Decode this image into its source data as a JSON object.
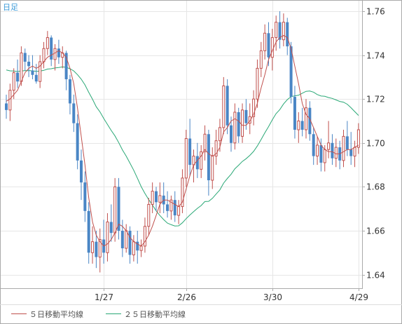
{
  "period_label": "日足",
  "chart_data": {
    "type": "candlestick",
    "ylim": [
      1.635,
      1.765
    ],
    "y_ticks": [
      "1.76",
      "1.74",
      "1.72",
      "1.70",
      "1.68",
      "1.66",
      "1.64"
    ],
    "x_ticks": [
      {
        "label": "1/27",
        "index": 26
      },
      {
        "label": "2/26",
        "index": 48
      },
      {
        "label": "3/30",
        "index": 71
      },
      {
        "label": "4/29",
        "index": 94
      }
    ],
    "legend": [
      {
        "label": "５日移動平均線",
        "color": "#c0504d"
      },
      {
        "label": "２５日移動平均線",
        "color": "#2aa876"
      }
    ],
    "colors": {
      "up": "#c0504d",
      "down": "#4a86c5",
      "ma5": "#c0504d",
      "ma25": "#2aa876",
      "grid": "#e6e6e6",
      "frame": "#aaaaaa"
    },
    "ohlc": [
      [
        1.718,
        1.722,
        1.711,
        1.715
      ],
      [
        1.715,
        1.727,
        1.71,
        1.724
      ],
      [
        1.724,
        1.734,
        1.72,
        1.732
      ],
      [
        1.732,
        1.738,
        1.725,
        1.728
      ],
      [
        1.728,
        1.744,
        1.726,
        1.741
      ],
      [
        1.741,
        1.743,
        1.733,
        1.737
      ],
      [
        1.737,
        1.74,
        1.73,
        1.735
      ],
      [
        1.733,
        1.74,
        1.729,
        1.731
      ],
      [
        1.731,
        1.736,
        1.727,
        1.728
      ],
      [
        1.728,
        1.74,
        1.725,
        1.737
      ],
      [
        1.737,
        1.746,
        1.734,
        1.743
      ],
      [
        1.743,
        1.751,
        1.74,
        1.748
      ],
      [
        1.748,
        1.749,
        1.735,
        1.738
      ],
      [
        1.738,
        1.745,
        1.733,
        1.743
      ],
      [
        1.743,
        1.747,
        1.736,
        1.739
      ],
      [
        1.739,
        1.744,
        1.734,
        1.741
      ],
      [
        1.741,
        1.742,
        1.724,
        1.729
      ],
      [
        1.729,
        1.731,
        1.713,
        1.718
      ],
      [
        1.718,
        1.722,
        1.705,
        1.709
      ],
      [
        1.709,
        1.713,
        1.688,
        1.692
      ],
      [
        1.692,
        1.697,
        1.674,
        1.682
      ],
      [
        1.682,
        1.687,
        1.664,
        1.669
      ],
      [
        1.669,
        1.673,
        1.645,
        1.65
      ],
      [
        1.65,
        1.662,
        1.645,
        1.655
      ],
      [
        1.655,
        1.66,
        1.643,
        1.648
      ],
      [
        1.648,
        1.661,
        1.641,
        1.656
      ],
      [
        1.656,
        1.665,
        1.645,
        1.65
      ],
      [
        1.65,
        1.668,
        1.646,
        1.664
      ],
      [
        1.664,
        1.672,
        1.655,
        1.659
      ],
      [
        1.659,
        1.684,
        1.655,
        1.68
      ],
      [
        1.68,
        1.684,
        1.656,
        1.66
      ],
      [
        1.66,
        1.665,
        1.648,
        1.652
      ],
      [
        1.652,
        1.663,
        1.65,
        1.66
      ],
      [
        1.66,
        1.662,
        1.645,
        1.649
      ],
      [
        1.649,
        1.658,
        1.646,
        1.655
      ],
      [
        1.655,
        1.66,
        1.645,
        1.651
      ],
      [
        1.651,
        1.656,
        1.648,
        1.653
      ],
      [
        1.653,
        1.666,
        1.65,
        1.662
      ],
      [
        1.662,
        1.675,
        1.658,
        1.672
      ],
      [
        1.672,
        1.682,
        1.668,
        1.678
      ],
      [
        1.678,
        1.68,
        1.669,
        1.673
      ],
      [
        1.673,
        1.682,
        1.668,
        1.676
      ],
      [
        1.676,
        1.682,
        1.668,
        1.672
      ],
      [
        1.672,
        1.678,
        1.666,
        1.669
      ],
      [
        1.669,
        1.676,
        1.665,
        1.674
      ],
      [
        1.674,
        1.678,
        1.664,
        1.667
      ],
      [
        1.667,
        1.674,
        1.663,
        1.671
      ],
      [
        1.671,
        1.688,
        1.668,
        1.684
      ],
      [
        1.684,
        1.706,
        1.68,
        1.702
      ],
      [
        1.702,
        1.711,
        1.685,
        1.69
      ],
      [
        1.69,
        1.697,
        1.682,
        1.694
      ],
      [
        1.694,
        1.7,
        1.684,
        1.688
      ],
      [
        1.688,
        1.699,
        1.684,
        1.696
      ],
      [
        1.696,
        1.708,
        1.692,
        1.704
      ],
      [
        1.704,
        1.706,
        1.676,
        1.683
      ],
      [
        1.683,
        1.698,
        1.679,
        1.694
      ],
      [
        1.694,
        1.706,
        1.69,
        1.701
      ],
      [
        1.701,
        1.711,
        1.696,
        1.707
      ],
      [
        1.707,
        1.73,
        1.704,
        1.726
      ],
      [
        1.726,
        1.729,
        1.704,
        1.708
      ],
      [
        1.708,
        1.712,
        1.696,
        1.7
      ],
      [
        1.7,
        1.718,
        1.697,
        1.714
      ],
      [
        1.714,
        1.716,
        1.7,
        1.703
      ],
      [
        1.703,
        1.718,
        1.7,
        1.715
      ],
      [
        1.715,
        1.72,
        1.706,
        1.709
      ],
      [
        1.709,
        1.718,
        1.704,
        1.712
      ],
      [
        1.712,
        1.724,
        1.708,
        1.72
      ],
      [
        1.72,
        1.738,
        1.716,
        1.734
      ],
      [
        1.734,
        1.746,
        1.73,
        1.742
      ],
      [
        1.742,
        1.754,
        1.738,
        1.75
      ],
      [
        1.75,
        1.755,
        1.735,
        1.739
      ],
      [
        1.739,
        1.752,
        1.733,
        1.748
      ],
      [
        1.748,
        1.758,
        1.742,
        1.755
      ],
      [
        1.755,
        1.76,
        1.743,
        1.747
      ],
      [
        1.747,
        1.759,
        1.744,
        1.755
      ],
      [
        1.755,
        1.757,
        1.74,
        1.744
      ],
      [
        1.744,
        1.746,
        1.718,
        1.721
      ],
      [
        1.721,
        1.726,
        1.702,
        1.706
      ],
      [
        1.706,
        1.714,
        1.7,
        1.71
      ],
      [
        1.71,
        1.716,
        1.703,
        1.706
      ],
      [
        1.706,
        1.72,
        1.702,
        1.716
      ],
      [
        1.716,
        1.719,
        1.701,
        1.704
      ],
      [
        1.704,
        1.707,
        1.69,
        1.694
      ],
      [
        1.694,
        1.703,
        1.69,
        1.699
      ],
      [
        1.699,
        1.702,
        1.687,
        1.691
      ],
      [
        1.691,
        1.699,
        1.687,
        1.697
      ],
      [
        1.697,
        1.71,
        1.693,
        1.7
      ],
      [
        1.7,
        1.704,
        1.69,
        1.693
      ],
      [
        1.693,
        1.702,
        1.689,
        1.698
      ],
      [
        1.698,
        1.701,
        1.688,
        1.692
      ],
      [
        1.692,
        1.706,
        1.689,
        1.703
      ],
      [
        1.703,
        1.71,
        1.694,
        1.697
      ],
      [
        1.697,
        1.705,
        1.69,
        1.694
      ],
      [
        1.694,
        1.701,
        1.689,
        1.698
      ],
      [
        1.698,
        1.709,
        1.695,
        1.706
      ]
    ],
    "ma5": [
      1.719,
      1.72,
      1.722,
      1.724,
      1.728,
      1.732,
      1.734,
      1.735,
      1.734,
      1.735,
      1.737,
      1.739,
      1.74,
      1.741,
      1.742,
      1.741,
      1.739,
      1.734,
      1.727,
      1.716,
      1.703,
      1.69,
      1.675,
      1.664,
      1.658,
      1.655,
      1.653,
      1.654,
      1.656,
      1.659,
      1.663,
      1.662,
      1.66,
      1.657,
      1.655,
      1.654,
      1.653,
      1.655,
      1.658,
      1.662,
      1.667,
      1.672,
      1.674,
      1.674,
      1.673,
      1.672,
      1.671,
      1.673,
      1.679,
      1.685,
      1.69,
      1.692,
      1.694,
      1.697,
      1.695,
      1.694,
      1.695,
      1.698,
      1.705,
      1.707,
      1.71,
      1.711,
      1.71,
      1.708,
      1.708,
      1.71,
      1.713,
      1.718,
      1.725,
      1.731,
      1.738,
      1.742,
      1.746,
      1.748,
      1.749,
      1.748,
      1.743,
      1.735,
      1.727,
      1.718,
      1.713,
      1.711,
      1.707,
      1.703,
      1.699,
      1.697,
      1.696,
      1.696,
      1.695,
      1.695,
      1.696,
      1.697,
      1.697,
      1.698,
      1.699
    ]
  }
}
